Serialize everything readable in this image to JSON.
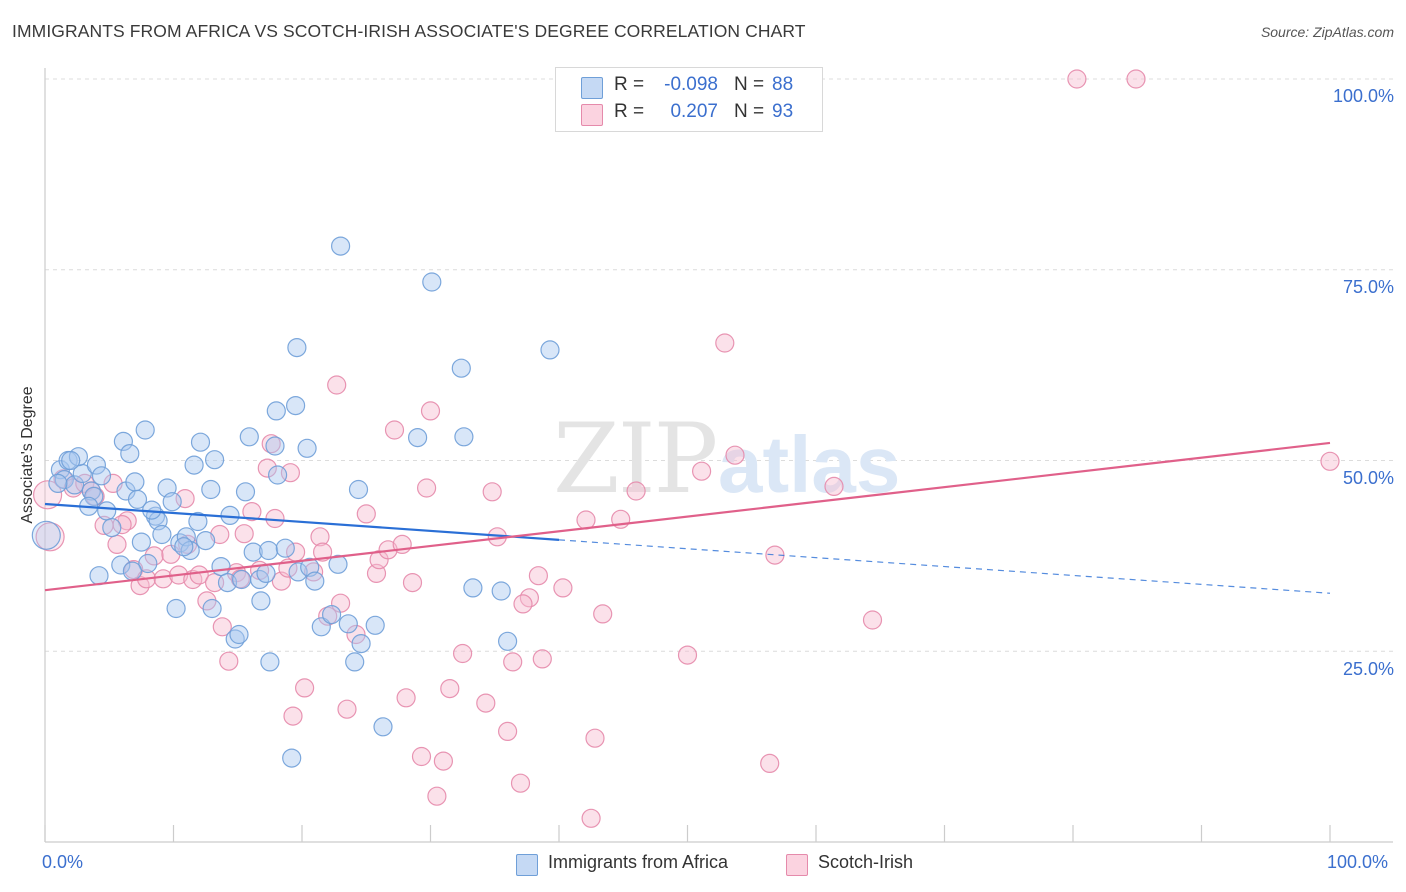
{
  "title": "IMMIGRANTS FROM AFRICA VS SCOTCH-IRISH ASSOCIATE'S DEGREE CORRELATION CHART",
  "source": "Source: ZipAtlas.com",
  "watermark": {
    "zip": "ZIP",
    "atlas": "atlas"
  },
  "legend": {
    "rows": [
      {
        "r_label": "R =",
        "r_value": "-0.098",
        "n_label": "N =",
        "n_value": "88",
        "color": "#a9c8f0",
        "border": "#6f9fd8"
      },
      {
        "r_label": "R =",
        "r_value": "0.207",
        "n_label": "N =",
        "n_value": "93",
        "color": "#f6bcd0",
        "border": "#e58aab"
      }
    ]
  },
  "bottom_legend": {
    "africa": "Immigrants from Africa",
    "scotch": "Scotch-Irish"
  },
  "chart_data": {
    "type": "scatter",
    "title": "IMMIGRANTS FROM AFRICA VS SCOTCH-IRISH ASSOCIATE'S DEGREE CORRELATION CHART",
    "xlabel": "",
    "ylabel": "Associate's Degree",
    "xlim": [
      0,
      100
    ],
    "ylim": [
      0,
      103
    ],
    "x_tick_labels": [
      "0.0%",
      "100.0%"
    ],
    "y_ticks": [
      25,
      50,
      75,
      100
    ],
    "y_tick_labels": [
      "25.0%",
      "50.0%",
      "75.0%",
      "100.0%"
    ],
    "grid": true,
    "legend_position": "top-center",
    "colors": {
      "africa": "#6f9fd8",
      "africa_fill": "#a9c8f0",
      "scotch": "#e58aab",
      "scotch_fill": "#f6bcd0",
      "africa_line": "#2a6fd6",
      "scotch_line": "#e0608a"
    },
    "series": [
      {
        "name": "Immigrants from Africa",
        "trend": {
          "x0": 0,
          "y0": 44.3,
          "x1": 40,
          "y1": 39.6,
          "dash_to_x": 100,
          "dash_to_y": 32.6
        },
        "points": [
          [
            0.1,
            40.2,
            14
          ],
          [
            1.2,
            48.8,
            9
          ],
          [
            1.8,
            50.0,
            9
          ],
          [
            1.5,
            47.5,
            9
          ],
          [
            2.3,
            46.8,
            9
          ],
          [
            2.9,
            48.3,
            9
          ],
          [
            3.6,
            46.0,
            9
          ],
          [
            2.6,
            50.5,
            9
          ],
          [
            3.8,
            45.3,
            9
          ],
          [
            4.0,
            49.4,
            9
          ],
          [
            4.4,
            48.0,
            9
          ],
          [
            4.8,
            43.4,
            9
          ],
          [
            5.2,
            41.2,
            9
          ],
          [
            6.1,
            52.5,
            9
          ],
          [
            6.3,
            46.0,
            9
          ],
          [
            6.6,
            50.9,
            9
          ],
          [
            7.0,
            47.2,
            9
          ],
          [
            7.2,
            44.9,
            9
          ],
          [
            7.8,
            54.0,
            9
          ],
          [
            7.5,
            39.3,
            9
          ],
          [
            8.0,
            36.5,
            9
          ],
          [
            8.6,
            42.7,
            9
          ],
          [
            8.8,
            42.1,
            9
          ],
          [
            9.5,
            46.4,
            9
          ],
          [
            9.9,
            44.6,
            9
          ],
          [
            10.2,
            30.6,
            9
          ],
          [
            10.5,
            39.2,
            9
          ],
          [
            11.0,
            40.0,
            9
          ],
          [
            11.3,
            38.2,
            9
          ],
          [
            11.6,
            49.4,
            9
          ],
          [
            12.1,
            52.4,
            9
          ],
          [
            12.5,
            39.5,
            9
          ],
          [
            12.9,
            46.2,
            9
          ],
          [
            13.2,
            50.1,
            9
          ],
          [
            13.7,
            36.1,
            9
          ],
          [
            14.2,
            34.0,
            9
          ],
          [
            14.4,
            42.8,
            9
          ],
          [
            14.8,
            26.6,
            9
          ],
          [
            15.1,
            27.2,
            9
          ],
          [
            15.6,
            45.9,
            9
          ],
          [
            15.9,
            53.1,
            9
          ],
          [
            16.2,
            38.0,
            9
          ],
          [
            16.7,
            34.4,
            9
          ],
          [
            16.8,
            31.6,
            9
          ],
          [
            17.4,
            38.2,
            9
          ],
          [
            17.5,
            23.6,
            9
          ],
          [
            17.9,
            51.9,
            9
          ],
          [
            18.1,
            48.1,
            9
          ],
          [
            18.0,
            56.5,
            9
          ],
          [
            18.7,
            38.5,
            9
          ],
          [
            19.5,
            57.2,
            9
          ],
          [
            19.2,
            11.0,
            9
          ],
          [
            19.6,
            64.8,
            9
          ],
          [
            19.7,
            35.4,
            9
          ],
          [
            20.4,
            51.6,
            9
          ],
          [
            20.6,
            36.0,
            9
          ],
          [
            21.5,
            28.2,
            9
          ],
          [
            22.3,
            29.8,
            9
          ],
          [
            23.0,
            78.1,
            9
          ],
          [
            23.6,
            28.6,
            9
          ],
          [
            24.1,
            23.6,
            9
          ],
          [
            24.6,
            26.0,
            9
          ],
          [
            24.4,
            46.2,
            9
          ],
          [
            25.7,
            28.4,
            9
          ],
          [
            26.3,
            15.1,
            9
          ],
          [
            29.0,
            53.0,
            9
          ],
          [
            30.1,
            73.4,
            9
          ],
          [
            32.4,
            62.1,
            9
          ],
          [
            32.6,
            53.1,
            9
          ],
          [
            33.3,
            33.3,
            9
          ],
          [
            35.5,
            32.9,
            9
          ],
          [
            36.0,
            26.3,
            9
          ],
          [
            39.3,
            64.5,
            9
          ],
          [
            4.2,
            34.9,
            9
          ],
          [
            3.4,
            44.0,
            9
          ],
          [
            5.9,
            36.3,
            9
          ],
          [
            9.1,
            40.3,
            9
          ],
          [
            13.0,
            30.6,
            9
          ],
          [
            15.3,
            34.4,
            9
          ],
          [
            21.0,
            34.2,
            9
          ],
          [
            2.0,
            50.0,
            9
          ],
          [
            1.0,
            47.0,
            9
          ],
          [
            6.8,
            35.5,
            9
          ],
          [
            11.9,
            42.0,
            9
          ],
          [
            22.8,
            36.4,
            9
          ],
          [
            17.2,
            35.2,
            9
          ],
          [
            10.8,
            38.7,
            9
          ],
          [
            8.3,
            43.5,
            9
          ]
        ]
      },
      {
        "name": "Scotch-Irish",
        "trend": {
          "x0": 0,
          "y0": 33.0,
          "x1": 100,
          "y1": 52.3
        },
        "points": [
          [
            0.2,
            45.5,
            14
          ],
          [
            0.4,
            40.0,
            14
          ],
          [
            1.4,
            47.6,
            9
          ],
          [
            2.2,
            46.4,
            9
          ],
          [
            3.1,
            47.0,
            9
          ],
          [
            3.9,
            45.3,
            9
          ],
          [
            4.6,
            41.5,
            9
          ],
          [
            5.3,
            47.0,
            9
          ],
          [
            5.6,
            39.0,
            9
          ],
          [
            6.4,
            42.1,
            9
          ],
          [
            6.9,
            35.7,
            9
          ],
          [
            7.4,
            33.6,
            9
          ],
          [
            7.9,
            34.5,
            9
          ],
          [
            8.5,
            37.5,
            9
          ],
          [
            9.2,
            34.5,
            9
          ],
          [
            9.8,
            37.7,
            9
          ],
          [
            10.4,
            35.0,
            9
          ],
          [
            10.9,
            45.0,
            9
          ],
          [
            11.5,
            34.4,
            9
          ],
          [
            12.0,
            35.0,
            9
          ],
          [
            12.6,
            31.6,
            9
          ],
          [
            13.2,
            34.0,
            9
          ],
          [
            13.6,
            40.3,
            9
          ],
          [
            13.8,
            28.2,
            9
          ],
          [
            14.3,
            23.7,
            9
          ],
          [
            14.9,
            35.3,
            9
          ],
          [
            15.2,
            34.5,
            9
          ],
          [
            15.5,
            40.4,
            9
          ],
          [
            16.1,
            43.3,
            9
          ],
          [
            16.7,
            35.6,
            9
          ],
          [
            17.3,
            49.0,
            9
          ],
          [
            17.6,
            52.2,
            9
          ],
          [
            17.9,
            42.4,
            9
          ],
          [
            18.4,
            34.2,
            9
          ],
          [
            18.9,
            35.9,
            9
          ],
          [
            19.3,
            16.5,
            9
          ],
          [
            19.1,
            48.4,
            9
          ],
          [
            19.5,
            38.0,
            9
          ],
          [
            20.2,
            20.2,
            9
          ],
          [
            20.9,
            35.4,
            9
          ],
          [
            21.4,
            40.0,
            9
          ],
          [
            21.6,
            38.0,
            9
          ],
          [
            22.0,
            29.6,
            9
          ],
          [
            22.7,
            59.9,
            9
          ],
          [
            23.0,
            31.3,
            9
          ],
          [
            23.5,
            17.4,
            9
          ],
          [
            24.2,
            27.2,
            9
          ],
          [
            25.0,
            43.0,
            9
          ],
          [
            25.8,
            35.2,
            9
          ],
          [
            26.0,
            37.0,
            9
          ],
          [
            26.7,
            38.3,
            9
          ],
          [
            27.2,
            54.0,
            9
          ],
          [
            27.8,
            39.0,
            9
          ],
          [
            28.1,
            18.9,
            9
          ],
          [
            28.6,
            34.0,
            9
          ],
          [
            29.3,
            11.2,
            9
          ],
          [
            29.7,
            46.4,
            9
          ],
          [
            30.0,
            56.5,
            9
          ],
          [
            30.5,
            6.0,
            9
          ],
          [
            31.0,
            10.6,
            9
          ],
          [
            31.5,
            20.1,
            9
          ],
          [
            32.5,
            24.7,
            9
          ],
          [
            34.8,
            45.9,
            9
          ],
          [
            34.3,
            18.2,
            9
          ],
          [
            35.2,
            40.0,
            9
          ],
          [
            36.0,
            14.5,
            9
          ],
          [
            36.4,
            23.6,
            9
          ],
          [
            37.0,
            7.7,
            9
          ],
          [
            37.7,
            32.0,
            9
          ],
          [
            37.2,
            31.2,
            9
          ],
          [
            38.4,
            34.9,
            9
          ],
          [
            38.7,
            24.0,
            9
          ],
          [
            40.3,
            33.3,
            9
          ],
          [
            42.1,
            42.2,
            9
          ],
          [
            42.8,
            13.6,
            9
          ],
          [
            42.5,
            3.1,
            9
          ],
          [
            43.4,
            29.9,
            9
          ],
          [
            44.8,
            42.3,
            9
          ],
          [
            46.0,
            46.0,
            9
          ],
          [
            50.0,
            24.5,
            9
          ],
          [
            51.1,
            48.6,
            9
          ],
          [
            52.9,
            65.4,
            9
          ],
          [
            53.7,
            50.7,
            9
          ],
          [
            56.4,
            10.3,
            9
          ],
          [
            56.8,
            37.6,
            9
          ],
          [
            61.4,
            46.6,
            9
          ],
          [
            64.4,
            29.1,
            9
          ],
          [
            80.3,
            100.0,
            9
          ],
          [
            84.9,
            100.0,
            9
          ],
          [
            100.0,
            49.9,
            9
          ],
          [
            3.6,
            46.0,
            9
          ],
          [
            6.0,
            41.6,
            9
          ],
          [
            11.1,
            39.0,
            9
          ]
        ]
      }
    ]
  }
}
